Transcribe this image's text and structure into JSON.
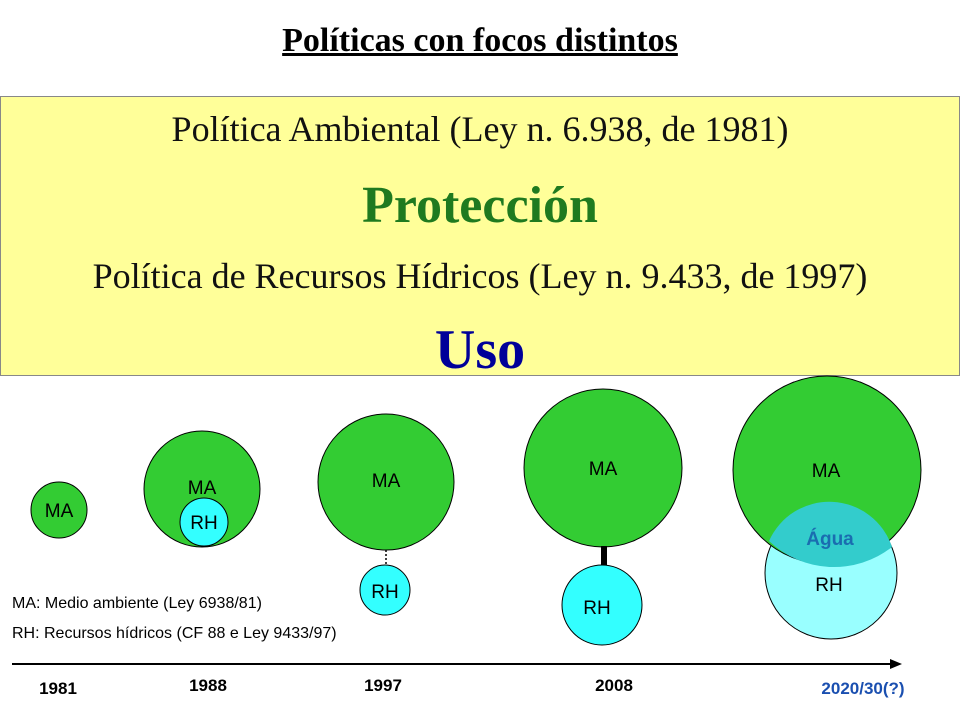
{
  "title": "Políticas con focos distintos",
  "box": {
    "policy1": "Política Ambiental (Ley n. 6.938, de 1981)",
    "keyword1": "Protección",
    "policy2": "Política de Recursos Hídricos (Ley n. 9.433, de 1997)",
    "keyword2": "Uso"
  },
  "circles": {
    "ma_label": "MA",
    "rh_label": "RH",
    "agua_label": "Água"
  },
  "legend": {
    "ma": "MA: Medio ambiente (Ley 6938/81)",
    "rh": "RH: Recursos hídricos (CF 88 e Ley 9433/97)"
  },
  "timeline": {
    "years": [
      "1981",
      "1988",
      "1997",
      "2008",
      "2020/30(?)"
    ]
  },
  "colors": {
    "ma_fill": "#33cc33",
    "rh_fill": "#33ffff",
    "rh_light_fill": "#99ffff",
    "box_fill": "#ffff99",
    "protection": "#1f7a1f",
    "use": "#000099"
  }
}
